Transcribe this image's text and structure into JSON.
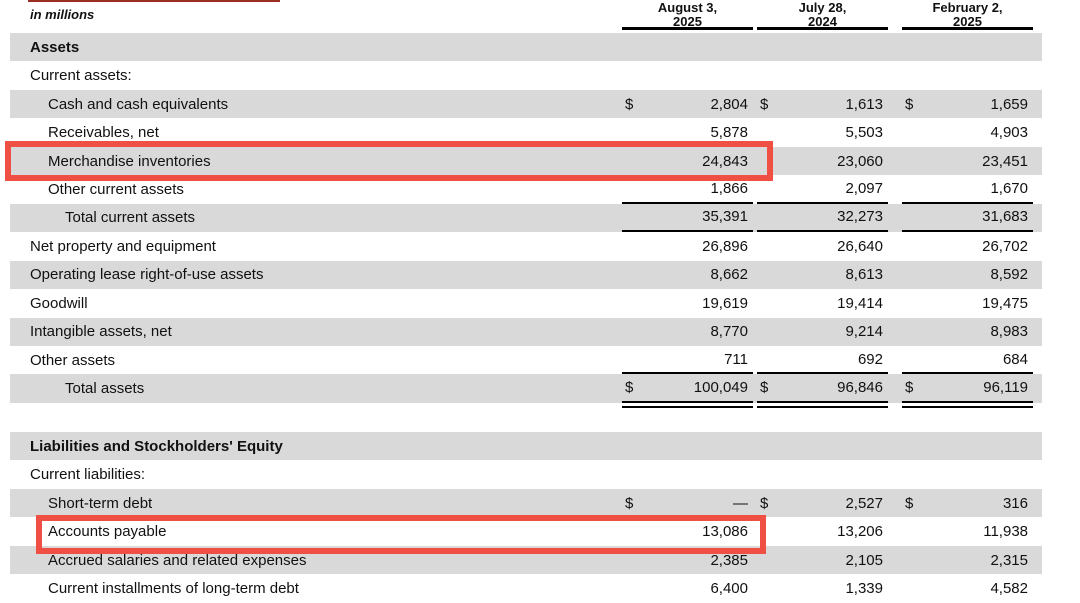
{
  "meta": {
    "units_label": "in millions",
    "currency_symbol": "$"
  },
  "colors": {
    "row_shading": "#d9d9d9",
    "highlight_border": "#f04f44",
    "rule_color": "#000000"
  },
  "table": {
    "columns": [
      {
        "line1": "August 3,",
        "line2": "2025"
      },
      {
        "line1": "July 28,",
        "line2": "2024"
      },
      {
        "line1": "February 2,",
        "line2": "2025"
      }
    ],
    "rows": [
      {
        "label": "Assets",
        "values": [
          "",
          "",
          ""
        ]
      },
      {
        "label": "Current assets:",
        "values": [
          "",
          "",
          ""
        ]
      },
      {
        "label": "Cash and cash equivalents",
        "values": [
          "2,804",
          "1,613",
          "1,659"
        ]
      },
      {
        "label": "Receivables, net",
        "values": [
          "5,878",
          "5,503",
          "4,903"
        ]
      },
      {
        "label": "Merchandise inventories",
        "values": [
          "24,843",
          "23,060",
          "23,451"
        ],
        "highlighted": true
      },
      {
        "label": "Other current assets",
        "values": [
          "1,866",
          "2,097",
          "1,670"
        ]
      },
      {
        "label": "Total current assets",
        "values": [
          "35,391",
          "32,273",
          "31,683"
        ]
      },
      {
        "label": "Net property and equipment",
        "values": [
          "26,896",
          "26,640",
          "26,702"
        ]
      },
      {
        "label": "Operating lease right-of-use assets",
        "values": [
          "8,662",
          "8,613",
          "8,592"
        ]
      },
      {
        "label": "Goodwill",
        "values": [
          "19,619",
          "19,414",
          "19,475"
        ]
      },
      {
        "label": "Intangible assets, net",
        "values": [
          "8,770",
          "9,214",
          "8,983"
        ]
      },
      {
        "label": "Other assets",
        "values": [
          "711",
          "692",
          "684"
        ]
      },
      {
        "label": "Total assets",
        "values": [
          "100,049",
          "96,846",
          "96,119"
        ]
      },
      {
        "label": "Liabilities and Stockholders' Equity",
        "values": [
          "",
          "",
          ""
        ]
      },
      {
        "label": "Current liabilities:",
        "values": [
          "",
          "",
          ""
        ]
      },
      {
        "label": "Short-term debt",
        "values": [
          "—",
          "2,527",
          "316"
        ]
      },
      {
        "label": "Accounts payable",
        "values": [
          "13,086",
          "13,206",
          "11,938"
        ],
        "highlighted": true
      },
      {
        "label": "Accrued salaries and related expenses",
        "values": [
          "2,385",
          "2,105",
          "2,315"
        ]
      },
      {
        "label": "Current installments of long-term debt",
        "values": [
          "6,400",
          "1,339",
          "4,582"
        ]
      }
    ]
  }
}
